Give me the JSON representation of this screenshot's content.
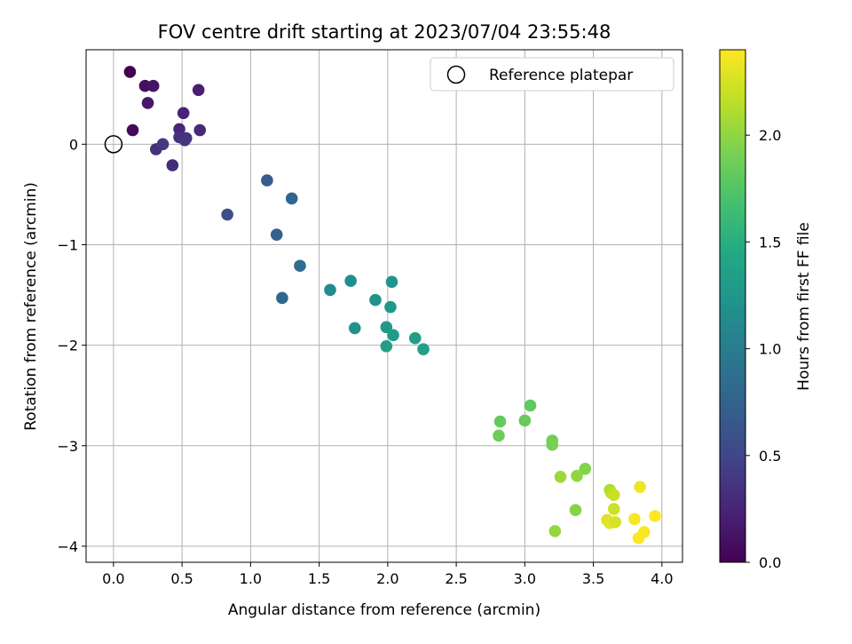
{
  "chart_data": {
    "type": "scatter",
    "title": "FOV centre drift starting at 2023/07/04 23:55:48",
    "xlabel": "Angular distance from reference (arcmin)",
    "ylabel": "Rotation from reference (arcmin)",
    "xlim": [
      -0.2,
      4.15
    ],
    "ylim": [
      -4.16,
      0.94
    ],
    "xticks": [
      0.0,
      0.5,
      1.0,
      1.5,
      2.0,
      2.5,
      3.0,
      3.5,
      4.0
    ],
    "xtick_labels": [
      "0.0",
      "0.5",
      "1.0",
      "1.5",
      "2.0",
      "2.5",
      "3.0",
      "3.5",
      "4.0"
    ],
    "yticks": [
      0,
      -1,
      -2,
      -3,
      -4
    ],
    "ytick_labels": [
      "0",
      "−1",
      "−2",
      "−3",
      "−4"
    ],
    "grid": true,
    "legend": {
      "position": "top-right",
      "label": "Reference platepar"
    },
    "reference_point": {
      "x": 0.0,
      "y": 0.0
    },
    "colorbar": {
      "label": "Hours from first FF file",
      "colormap": "viridis",
      "range": [
        0.0,
        2.4
      ],
      "ticks": [
        0.0,
        0.5,
        1.0,
        1.5,
        2.0
      ],
      "tick_labels": [
        "0.0",
        "0.5",
        "1.0",
        "1.5",
        "2.0"
      ]
    },
    "points": [
      {
        "x": 0.12,
        "y": 0.72,
        "c": 0.0
      },
      {
        "x": 0.14,
        "y": 0.14,
        "c": 0.05
      },
      {
        "x": 0.23,
        "y": 0.58,
        "c": 0.1
      },
      {
        "x": 0.29,
        "y": 0.58,
        "c": 0.13
      },
      {
        "x": 0.25,
        "y": 0.41,
        "c": 0.16
      },
      {
        "x": 0.62,
        "y": 0.54,
        "c": 0.2
      },
      {
        "x": 0.51,
        "y": 0.31,
        "c": 0.24
      },
      {
        "x": 0.48,
        "y": 0.15,
        "c": 0.26
      },
      {
        "x": 0.63,
        "y": 0.14,
        "c": 0.28
      },
      {
        "x": 0.43,
        "y": -0.21,
        "c": 0.3
      },
      {
        "x": 0.31,
        "y": -0.05,
        "c": 0.32
      },
      {
        "x": 0.48,
        "y": 0.07,
        "c": 0.34
      },
      {
        "x": 0.53,
        "y": 0.06,
        "c": 0.36
      },
      {
        "x": 0.52,
        "y": 0.04,
        "c": 0.38
      },
      {
        "x": 0.36,
        "y": 0.0,
        "c": 0.4
      },
      {
        "x": 0.83,
        "y": -0.7,
        "c": 0.58
      },
      {
        "x": 1.12,
        "y": -0.36,
        "c": 0.68
      },
      {
        "x": 1.19,
        "y": -0.9,
        "c": 0.74
      },
      {
        "x": 1.3,
        "y": -0.54,
        "c": 0.78
      },
      {
        "x": 1.23,
        "y": -1.53,
        "c": 0.8
      },
      {
        "x": 1.36,
        "y": -1.21,
        "c": 0.84
      },
      {
        "x": 1.58,
        "y": -1.45,
        "c": 1.14
      },
      {
        "x": 1.73,
        "y": -1.36,
        "c": 1.18
      },
      {
        "x": 1.76,
        "y": -1.83,
        "c": 1.2
      },
      {
        "x": 1.91,
        "y": -1.55,
        "c": 1.22
      },
      {
        "x": 2.03,
        "y": -1.37,
        "c": 1.24
      },
      {
        "x": 2.02,
        "y": -1.62,
        "c": 1.26
      },
      {
        "x": 1.99,
        "y": -1.82,
        "c": 1.28
      },
      {
        "x": 2.04,
        "y": -1.9,
        "c": 1.3
      },
      {
        "x": 1.99,
        "y": -2.01,
        "c": 1.32
      },
      {
        "x": 2.2,
        "y": -1.93,
        "c": 1.34
      },
      {
        "x": 2.26,
        "y": -2.04,
        "c": 1.36
      },
      {
        "x": 3.04,
        "y": -2.6,
        "c": 1.8
      },
      {
        "x": 2.82,
        "y": -2.76,
        "c": 1.82
      },
      {
        "x": 3.0,
        "y": -2.75,
        "c": 1.84
      },
      {
        "x": 2.81,
        "y": -2.9,
        "c": 1.86
      },
      {
        "x": 3.2,
        "y": -2.95,
        "c": 1.88
      },
      {
        "x": 3.2,
        "y": -2.99,
        "c": 1.9
      },
      {
        "x": 3.44,
        "y": -3.23,
        "c": 1.95
      },
      {
        "x": 3.38,
        "y": -3.3,
        "c": 2.0
      },
      {
        "x": 3.26,
        "y": -3.31,
        "c": 2.05
      },
      {
        "x": 3.37,
        "y": -3.64,
        "c": 1.96
      },
      {
        "x": 3.22,
        "y": -3.85,
        "c": 2.02
      },
      {
        "x": 3.62,
        "y": -3.44,
        "c": 2.1
      },
      {
        "x": 3.63,
        "y": -3.47,
        "c": 2.15
      },
      {
        "x": 3.65,
        "y": -3.49,
        "c": 2.2
      },
      {
        "x": 3.65,
        "y": -3.63,
        "c": 2.22
      },
      {
        "x": 3.6,
        "y": -3.74,
        "c": 2.28
      },
      {
        "x": 3.62,
        "y": -3.77,
        "c": 2.3
      },
      {
        "x": 3.66,
        "y": -3.76,
        "c": 2.25
      },
      {
        "x": 3.84,
        "y": -3.41,
        "c": 2.35
      },
      {
        "x": 3.8,
        "y": -3.73,
        "c": 2.38
      },
      {
        "x": 3.95,
        "y": -3.7,
        "c": 2.4
      },
      {
        "x": 3.87,
        "y": -3.86,
        "c": 2.39
      },
      {
        "x": 3.83,
        "y": -3.92,
        "c": 2.4
      }
    ]
  }
}
